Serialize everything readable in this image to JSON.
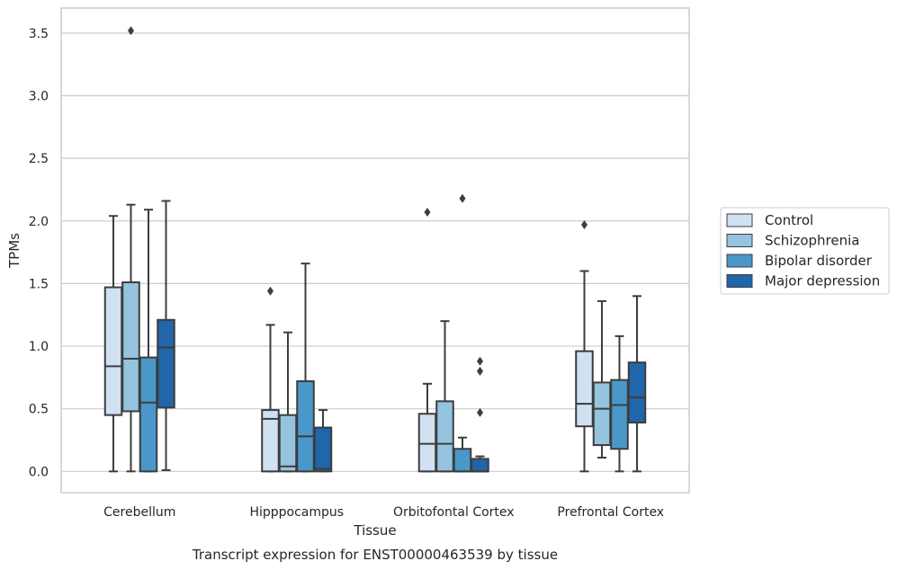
{
  "chart_data": {
    "type": "box",
    "title": "",
    "caption": "Transcript expression for ENST00000463539 by tissue",
    "xlabel": "Tissue",
    "ylabel": "TPMs",
    "ylim": [
      -0.17,
      3.7
    ],
    "yticks": [
      "0.0",
      "0.5",
      "1.0",
      "1.5",
      "2.0",
      "2.5",
      "3.0",
      "3.5"
    ],
    "ytick_values": [
      0,
      0.5,
      1.0,
      1.5,
      2.0,
      2.5,
      3.0,
      3.5
    ],
    "grid": "horizontal",
    "legend_position": "right",
    "categories": [
      "Cerebellum",
      "Hipppocampus",
      "Orbitofontal Cortex",
      "Prefrontal Cortex"
    ],
    "series": [
      {
        "name": "Control",
        "color": "#d0e1f2",
        "boxes": [
          {
            "whislo": 0.0,
            "q1": 0.45,
            "med": 0.84,
            "q3": 1.47,
            "whishi": 2.04,
            "fliers": []
          },
          {
            "whislo": 0.0,
            "q1": 0.0,
            "med": 0.42,
            "q3": 0.49,
            "whishi": 1.17,
            "fliers": [
              1.44
            ]
          },
          {
            "whislo": 0.0,
            "q1": 0.0,
            "med": 0.22,
            "q3": 0.46,
            "whishi": 0.7,
            "fliers": [
              2.07
            ]
          },
          {
            "whislo": 0.0,
            "q1": 0.36,
            "med": 0.54,
            "q3": 0.96,
            "whishi": 1.6,
            "fliers": [
              1.97
            ]
          }
        ]
      },
      {
        "name": "Schizophrenia",
        "color": "#94c4df",
        "boxes": [
          {
            "whislo": 0.0,
            "q1": 0.48,
            "med": 0.9,
            "q3": 1.51,
            "whishi": 2.13,
            "fliers": [
              3.52
            ]
          },
          {
            "whislo": 0.0,
            "q1": 0.0,
            "med": 0.04,
            "q3": 0.45,
            "whishi": 1.11,
            "fliers": []
          },
          {
            "whislo": 0.0,
            "q1": 0.0,
            "med": 0.22,
            "q3": 0.56,
            "whishi": 1.2,
            "fliers": []
          },
          {
            "whislo": 0.11,
            "q1": 0.21,
            "med": 0.5,
            "q3": 0.71,
            "whishi": 1.36,
            "fliers": []
          }
        ]
      },
      {
        "name": "Bipolar disorder",
        "color": "#4a98c9",
        "boxes": [
          {
            "whislo": 0.0,
            "q1": 0.0,
            "med": 0.55,
            "q3": 0.91,
            "whishi": 2.09,
            "fliers": []
          },
          {
            "whislo": 0.0,
            "q1": 0.0,
            "med": 0.28,
            "q3": 0.72,
            "whishi": 1.66,
            "fliers": []
          },
          {
            "whislo": 0.0,
            "q1": 0.0,
            "med": 0.0,
            "q3": 0.18,
            "whishi": 0.27,
            "fliers": [
              2.18
            ]
          },
          {
            "whislo": 0.0,
            "q1": 0.18,
            "med": 0.53,
            "q3": 0.73,
            "whishi": 1.08,
            "fliers": []
          }
        ]
      },
      {
        "name": "Major depression",
        "color": "#2165ab",
        "boxes": [
          {
            "whislo": 0.01,
            "q1": 0.51,
            "med": 0.99,
            "q3": 1.21,
            "whishi": 2.16,
            "fliers": []
          },
          {
            "whislo": 0.0,
            "q1": 0.0,
            "med": 0.02,
            "q3": 0.35,
            "whishi": 0.49,
            "fliers": []
          },
          {
            "whislo": 0.0,
            "q1": 0.0,
            "med": 0.0,
            "q3": 0.1,
            "whishi": 0.12,
            "fliers": [
              0.47,
              0.8,
              0.88
            ]
          },
          {
            "whislo": 0.0,
            "q1": 0.39,
            "med": 0.59,
            "q3": 0.87,
            "whishi": 1.4,
            "fliers": []
          }
        ]
      }
    ]
  }
}
